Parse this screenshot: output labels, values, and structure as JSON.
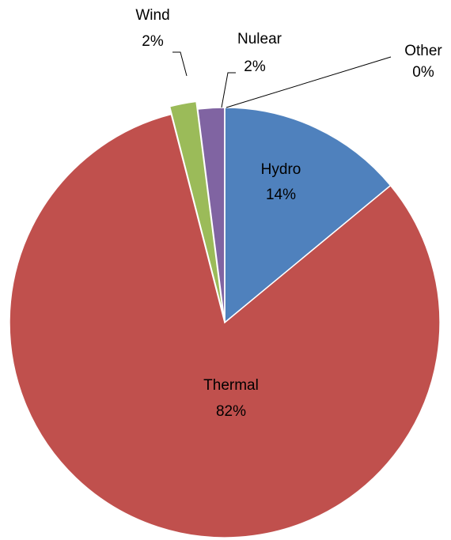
{
  "chart_data": {
    "type": "pie",
    "categories": [
      "Hydro",
      "Thermal",
      "Wind",
      "Nulear",
      "Other"
    ],
    "values": [
      14,
      82,
      2,
      2,
      0
    ],
    "value_labels": [
      "14%",
      "82%",
      "2%",
      "2%",
      "0%"
    ],
    "colors": [
      "#4f81bd",
      "#c0504d",
      "#9bbb59",
      "#8064a2",
      "#4bacc6"
    ]
  }
}
